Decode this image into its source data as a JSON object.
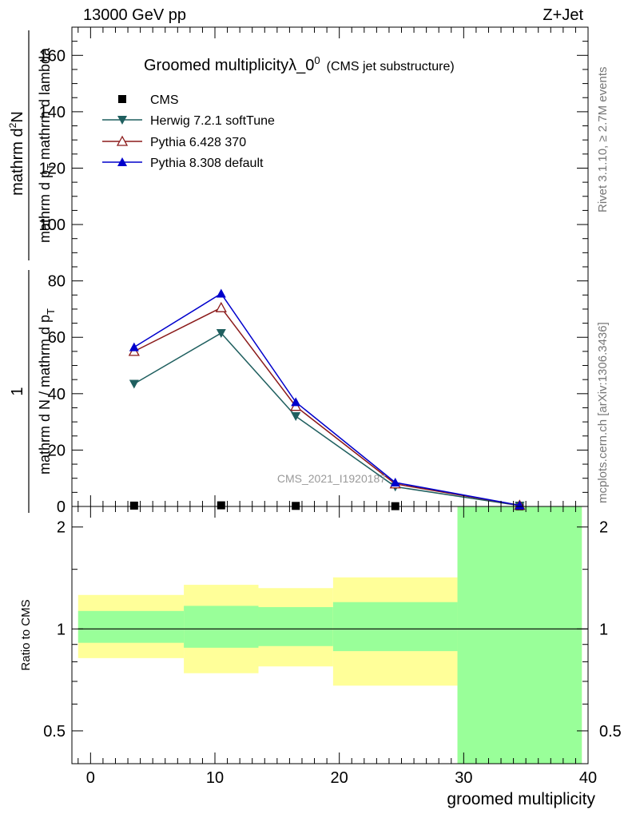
{
  "header": {
    "left": "13000 GeV pp",
    "right": "Z+Jet"
  },
  "side_text": {
    "rivet": "Rivet 3.1.10, ≥ 2.7M events",
    "site": "mcplots.cern.ch [arXiv:1306.3436]"
  },
  "watermark": "CMS_2021_I1920187",
  "chart_data": [
    {
      "type": "line",
      "title": "Groomed multiplicityλ_0",
      "title_sup": "0",
      "subtitle": "(CMS jet substructure)",
      "ylabel": {
        "numerator": "mathrm d",
        "numerator_sup": "2",
        "numerator_tail": "N",
        "denominator_a": "mathrm d p",
        "denominator_a_sub": "T",
        "denominator_b": " mathrm d lambda",
        "prefactor_num": "1",
        "prefactor_den": "mathrm d N / mathrm d p",
        "prefactor_den_sub": "T"
      },
      "xlim": [
        -1.5,
        40
      ],
      "ylim": [
        0,
        170
      ],
      "yticks": [
        0,
        20,
        40,
        60,
        80,
        100,
        120,
        140,
        160
      ],
      "series": [
        {
          "name": "CMS",
          "color": "#000000",
          "marker": "square",
          "x": [
            3.5,
            10.5,
            16.5,
            24.5,
            34.5
          ],
          "y": [
            0.3,
            0.4,
            0.2,
            0.1,
            0.05
          ]
        },
        {
          "name": "Herwig 7.2.1 softTune",
          "color": "#1f5f5f",
          "marker": "triangle-down",
          "x": [
            3.5,
            10.5,
            16.5,
            24.5,
            34.5
          ],
          "y": [
            43.5,
            61.5,
            32,
            7,
            0.3
          ]
        },
        {
          "name": "Pythia 6.428 370",
          "color": "#8b1a1a",
          "marker": "triangle-open",
          "x": [
            3.5,
            10.5,
            16.5,
            24.5,
            34.5
          ],
          "y": [
            55,
            70.5,
            35.5,
            8,
            0.4
          ]
        },
        {
          "name": "Pythia 8.308 default",
          "color": "#0000cc",
          "marker": "triangle-up",
          "x": [
            3.5,
            10.5,
            16.5,
            24.5,
            34.5
          ],
          "y": [
            56.5,
            75.5,
            37,
            8.5,
            0.4
          ]
        }
      ]
    },
    {
      "type": "area",
      "ylabel": "Ratio to CMS",
      "xlabel": "groomed multiplicity",
      "scale": "log",
      "xlim": [
        -1.5,
        40
      ],
      "ylim": [
        0.4,
        2.3
      ],
      "xticks": [
        0,
        10,
        20,
        30,
        40
      ],
      "yticks": [
        0.5,
        1,
        2
      ],
      "reference": 1,
      "bins": [
        {
          "xlo": -1,
          "xhi": 7.5,
          "stat_lo": 0.91,
          "stat_hi": 1.13,
          "tot_lo": 0.82,
          "tot_hi": 1.26
        },
        {
          "xlo": 7.5,
          "xhi": 13.5,
          "stat_lo": 0.88,
          "stat_hi": 1.17,
          "tot_lo": 0.74,
          "tot_hi": 1.35
        },
        {
          "xlo": 13.5,
          "xhi": 19.5,
          "stat_lo": 0.89,
          "stat_hi": 1.16,
          "tot_lo": 0.775,
          "tot_hi": 1.32
        },
        {
          "xlo": 19.5,
          "xhi": 29.5,
          "stat_lo": 0.86,
          "stat_hi": 1.2,
          "tot_lo": 0.68,
          "tot_hi": 1.42
        },
        {
          "xlo": 29.5,
          "xhi": 39.5,
          "stat_lo": 0.4,
          "stat_hi": 2.3,
          "tot_lo": 0.4,
          "tot_hi": 2.3
        }
      ],
      "colors": {
        "stat": "#99ff99",
        "total": "#ffff99"
      }
    }
  ]
}
